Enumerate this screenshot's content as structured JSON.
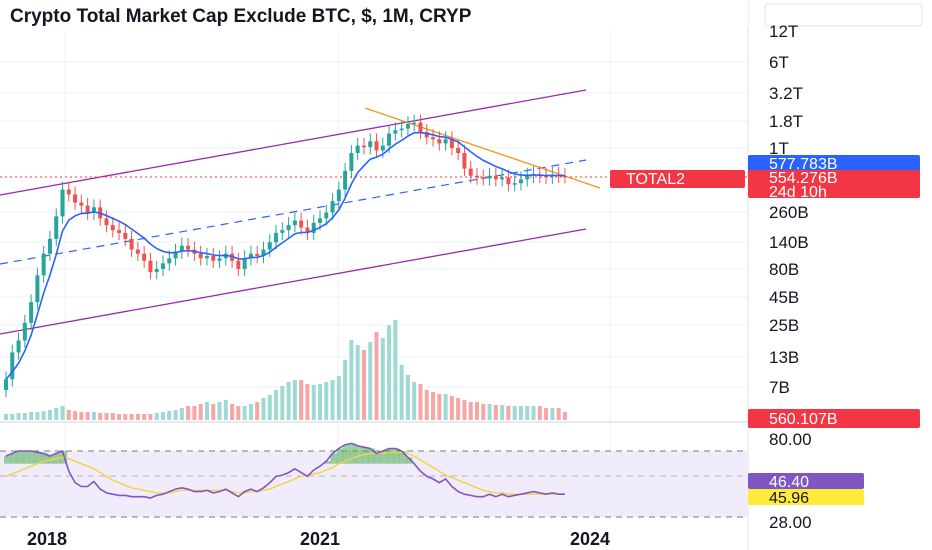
{
  "title": "Crypto Total Market Cap Exclude BTC, $, 1M, CRYP",
  "chart_data": {
    "type": "candlestick",
    "price_scale": "log",
    "price_axis_labels": [
      "12T",
      "6T",
      "3.2T",
      "1.8T",
      "1T",
      "260B",
      "140B",
      "80B",
      "45B",
      "25B",
      "13B",
      "7B"
    ],
    "time_axis_labels": [
      "2018",
      "2021",
      "2024"
    ],
    "series_name": "TOTAL2",
    "last_price": "554.276B",
    "countdown": "24d 10h",
    "price_line_label": "577.783B",
    "volume_label": "560.107B",
    "rsi_levels": [
      "80.00",
      "28.00"
    ],
    "rsi_value": "46.40",
    "rsi_ma_value": "45.96",
    "candles_close": [
      8,
      14,
      18,
      26,
      40,
      70,
      110,
      150,
      240,
      420,
      380,
      320,
      300,
      260,
      290,
      230,
      200,
      180,
      170,
      150,
      120,
      110,
      95,
      75,
      80,
      90,
      100,
      115,
      130,
      120,
      110,
      100,
      105,
      95,
      100,
      110,
      95,
      80,
      100,
      110,
      105,
      120,
      140,
      170,
      180,
      200,
      220,
      190,
      170,
      210,
      230,
      260,
      330,
      420,
      620,
      900,
      1050,
      1020,
      1150,
      950,
      1050,
      1350,
      1450,
      1500,
      1650,
      1700,
      1400,
      1250,
      1200,
      1100,
      1200,
      1000,
      900,
      650,
      560,
      540,
      530,
      560,
      520,
      540,
      470,
      480,
      520,
      560,
      580,
      560,
      550,
      570,
      560,
      554
    ],
    "candles_bull": [
      true,
      true,
      true,
      true,
      true,
      true,
      true,
      true,
      true,
      true,
      false,
      false,
      false,
      false,
      true,
      false,
      false,
      false,
      false,
      false,
      false,
      false,
      false,
      false,
      true,
      true,
      true,
      true,
      true,
      false,
      false,
      false,
      true,
      false,
      true,
      true,
      false,
      false,
      true,
      true,
      false,
      true,
      true,
      true,
      true,
      true,
      true,
      false,
      false,
      true,
      true,
      true,
      true,
      true,
      true,
      true,
      true,
      false,
      true,
      false,
      true,
      true,
      true,
      true,
      true,
      true,
      false,
      false,
      false,
      false,
      true,
      false,
      false,
      false,
      false,
      false,
      false,
      true,
      false,
      true,
      false,
      true,
      true,
      true,
      true,
      false,
      false,
      true,
      false,
      false
    ],
    "volume_heights": [
      6,
      6,
      7,
      7,
      8,
      8,
      9,
      10,
      12,
      14,
      10,
      9,
      8,
      8,
      8,
      7,
      7,
      7,
      6,
      6,
      6,
      6,
      6,
      6,
      7,
      8,
      9,
      10,
      12,
      14,
      14,
      16,
      18,
      16,
      18,
      20,
      16,
      14,
      14,
      16,
      18,
      22,
      25,
      30,
      34,
      38,
      40,
      40,
      36,
      35,
      36,
      38,
      40,
      44,
      60,
      80,
      75,
      70,
      78,
      88,
      82,
      95,
      100,
      55,
      45,
      38,
      36,
      30,
      28,
      26,
      26,
      24,
      22,
      20,
      18,
      18,
      16,
      16,
      15,
      15,
      14,
      14,
      14,
      14,
      14,
      14,
      12,
      12,
      12,
      8
    ],
    "rsi_values": [
      76,
      78,
      80,
      80,
      80,
      79,
      78,
      76,
      78,
      80,
      64,
      55,
      52,
      52,
      56,
      50,
      47,
      46,
      45,
      45,
      44,
      44,
      44,
      43,
      45,
      46,
      48,
      50,
      51,
      50,
      48,
      48,
      49,
      47,
      48,
      50,
      47,
      44,
      48,
      50,
      48,
      51,
      55,
      60,
      61,
      63,
      66,
      63,
      60,
      65,
      68,
      72,
      78,
      82,
      85,
      86,
      84,
      83,
      82,
      78,
      80,
      82,
      82,
      80,
      75,
      70,
      64,
      60,
      58,
      55,
      58,
      52,
      48,
      46,
      45,
      44,
      44,
      46,
      44,
      46,
      44,
      45,
      46,
      47,
      48,
      47,
      46,
      47,
      46,
      46
    ],
    "rsi_ma_values": [
      60,
      62,
      64,
      66,
      68,
      70,
      72,
      73,
      74,
      75,
      74,
      72,
      70,
      68,
      66,
      63,
      60,
      57,
      55,
      53,
      51,
      50,
      49,
      48,
      47,
      47,
      47,
      48,
      49,
      49,
      49,
      49,
      49,
      49,
      49,
      49,
      48,
      47,
      47,
      48,
      48,
      49,
      50,
      52,
      54,
      56,
      58,
      60,
      61,
      62,
      63,
      65,
      67,
      70,
      72,
      74,
      76,
      77,
      78,
      78,
      78,
      79,
      79,
      79,
      78,
      76,
      73,
      70,
      67,
      64,
      61,
      59,
      57,
      55,
      53,
      51,
      49,
      48,
      47,
      47,
      46,
      46,
      46,
      46,
      46,
      46,
      46,
      46,
      46,
      46
    ]
  },
  "colors": {
    "bull": "#26a69a",
    "bear": "#ef5350",
    "volume_bull": "#9fd9d3",
    "volume_bear": "#f5a6a5",
    "channel": "#9c27b0",
    "trendline": "#f7931a",
    "ema": "#2962ff",
    "rsi_line": "#7e57c2",
    "rsi_ma": "#f3d43d",
    "rsi_band": "#f1ecfb",
    "badge_red": "#f23645",
    "badge_blue": "#2962ff",
    "badge_purple": "#7e57c2",
    "badge_yellow": "#ffeb3b"
  }
}
